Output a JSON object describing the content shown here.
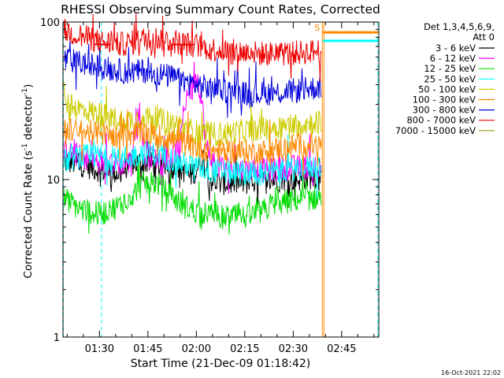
{
  "chart_data": {
    "type": "line",
    "title": "RHESSI Observing Summary Count Rates, Corrected",
    "xlabel": "Start Time (21-Dec-09 01:18:42)",
    "ylabel": "Corrected Count Rate (s",
    "ylabel_exp1": "-1",
    "ylabel_mid": " detector",
    "ylabel_exp2": "-1",
    "ylabel_end": ")",
    "y_scale": "log",
    "ylim": [
      1,
      100
    ],
    "xlim_minutes": [
      -11.3,
      86.5
    ],
    "y_ticks": [
      {
        "value": 1,
        "label": "1"
      },
      {
        "value": 10,
        "label": "10"
      },
      {
        "value": 100,
        "label": "100"
      }
    ],
    "x_ticks": [
      {
        "minutes": 0,
        "label": "01:30"
      },
      {
        "minutes": 15,
        "label": "01:45"
      },
      {
        "minutes": 30,
        "label": "02:00"
      },
      {
        "minutes": 45,
        "label": "02:15"
      },
      {
        "minutes": 60,
        "label": "02:30"
      },
      {
        "minutes": 75,
        "label": "02:45"
      }
    ],
    "legend": {
      "title_lines": [
        "Det 1,3,4,5,6,9,",
        "Att 0"
      ],
      "position": "right"
    },
    "series": [
      {
        "name": "3 - 6 keV",
        "color": "#000000",
        "x": [
          -11,
          -6,
          0,
          6,
          10,
          14,
          18,
          22,
          25,
          28,
          30,
          32,
          34,
          37,
          40,
          45,
          50,
          55,
          60,
          64,
          68.7
        ],
        "values": [
          13,
          12.5,
          11.5,
          11,
          12.5,
          13,
          12,
          12,
          12,
          10.5,
          11.5,
          14,
          10,
          9.5,
          9.5,
          9.5,
          9.8,
          10,
          10,
          10.3,
          10.5
        ]
      },
      {
        "name": "6 - 12 keV",
        "color": "#ff00ff",
        "x": [
          -11,
          -6,
          0,
          6,
          10,
          12,
          14,
          18,
          22,
          25,
          27,
          29,
          30,
          31,
          33,
          35,
          37,
          40,
          45,
          50,
          55,
          60,
          64,
          68.7
        ],
        "values": [
          15,
          14,
          13,
          12.5,
          13,
          30,
          14,
          14,
          14,
          16,
          35,
          38,
          48,
          38,
          16,
          13,
          12,
          12,
          11.5,
          11.5,
          11.5,
          12,
          12,
          12.5
        ]
      },
      {
        "name": "12 - 25 keV",
        "color": "#00dd00",
        "x": [
          -11,
          -6,
          0,
          6,
          10,
          14,
          18,
          22,
          26,
          30,
          34,
          38,
          42,
          46,
          50,
          54,
          58,
          62,
          66,
          68.7
        ],
        "values": [
          7.5,
          6.5,
          6,
          6.8,
          8,
          9.5,
          9.5,
          8,
          6.8,
          6.3,
          6,
          5.8,
          5.8,
          5.8,
          6.2,
          6.8,
          7.2,
          7.5,
          7.6,
          7.8
        ]
      },
      {
        "name": "25 - 50 keV",
        "color": "#00ffff",
        "x": [
          -11,
          -6,
          0,
          6,
          10,
          14,
          18,
          22,
          26,
          30,
          34,
          38,
          42,
          46,
          50,
          54,
          58,
          62,
          66,
          68.7
        ],
        "values": [
          13,
          14,
          14,
          13.5,
          14,
          15,
          14.5,
          13.5,
          12.5,
          12,
          11.5,
          11.2,
          11,
          11,
          11,
          11.2,
          11.5,
          11.8,
          12,
          12.2
        ]
      },
      {
        "name": "50 - 100 keV",
        "color": "#cccc00",
        "x": [
          -11,
          -6,
          0,
          6,
          10,
          14,
          18,
          22,
          26,
          30,
          34,
          38,
          42,
          46,
          50,
          54,
          58,
          62,
          66,
          68.7
        ],
        "values": [
          30,
          28,
          26,
          24,
          24,
          25,
          24,
          23,
          21.5,
          20,
          19.5,
          19.5,
          20,
          20.5,
          21,
          21.5,
          22,
          22.5,
          23,
          23
        ]
      },
      {
        "name": "100 - 300 keV",
        "color": "#ff8800",
        "x": [
          -11,
          -6,
          0,
          6,
          10,
          14,
          18,
          22,
          26,
          30,
          34,
          38,
          42,
          46,
          50,
          54,
          58,
          62,
          66,
          68.7
        ],
        "values": [
          21,
          20,
          19.5,
          19,
          19.5,
          20,
          19,
          18,
          17,
          16,
          15.5,
          15,
          15,
          15,
          15,
          15.5,
          16,
          16.5,
          16.5,
          16.5
        ]
      },
      {
        "name": "300 - 800 keV",
        "color": "#0000dd",
        "x": [
          -11,
          -6,
          0,
          6,
          10,
          14,
          18,
          22,
          26,
          30,
          34,
          38,
          42,
          46,
          50,
          54,
          58,
          62,
          66,
          68.7
        ],
        "values": [
          58,
          55,
          52,
          49,
          48,
          49,
          47,
          45,
          42,
          40,
          38,
          37,
          36,
          35,
          35,
          35.5,
          36,
          37,
          38,
          39
        ]
      },
      {
        "name": "800 - 7000 keV",
        "color": "#ee0000",
        "x": [
          -11,
          -6,
          0,
          6,
          10,
          14,
          18,
          22,
          26,
          30,
          34,
          38,
          42,
          46,
          50,
          54,
          58,
          62,
          66,
          68.7
        ],
        "values": [
          88,
          82,
          75,
          72,
          74,
          78,
          79,
          76,
          73,
          71,
          68,
          66,
          65,
          64,
          63,
          63,
          63,
          64,
          65,
          66
        ]
      },
      {
        "name": "7000 - 15000 keV",
        "color": "#999900",
        "x": [],
        "values": []
      }
    ],
    "after_gap": [
      {
        "name": "100 - 300 keV",
        "color": "#ff8800",
        "x_start": 69.2,
        "x_end": 86.5,
        "value": 86
      },
      {
        "name": "25 - 50 keV",
        "color": "#00ffff",
        "x_start": 69.2,
        "x_end": 86.5,
        "value": 76
      }
    ],
    "saa_segments": [
      {
        "x_start": -1.5,
        "x_end": 3.5,
        "value": 72
      },
      {
        "x_start": 22,
        "x_end": 29.5,
        "value": 72
      }
    ],
    "markers": {
      "cyan_dashed_x": [
        -11.2,
        0.6,
        86.2
      ],
      "orange_solid_x": [
        69.0,
        69.5
      ],
      "letter": "S",
      "letter_x": 67.4,
      "letter_value": 88
    },
    "footer_timestamp": "16-Oct-2021 22:02"
  }
}
